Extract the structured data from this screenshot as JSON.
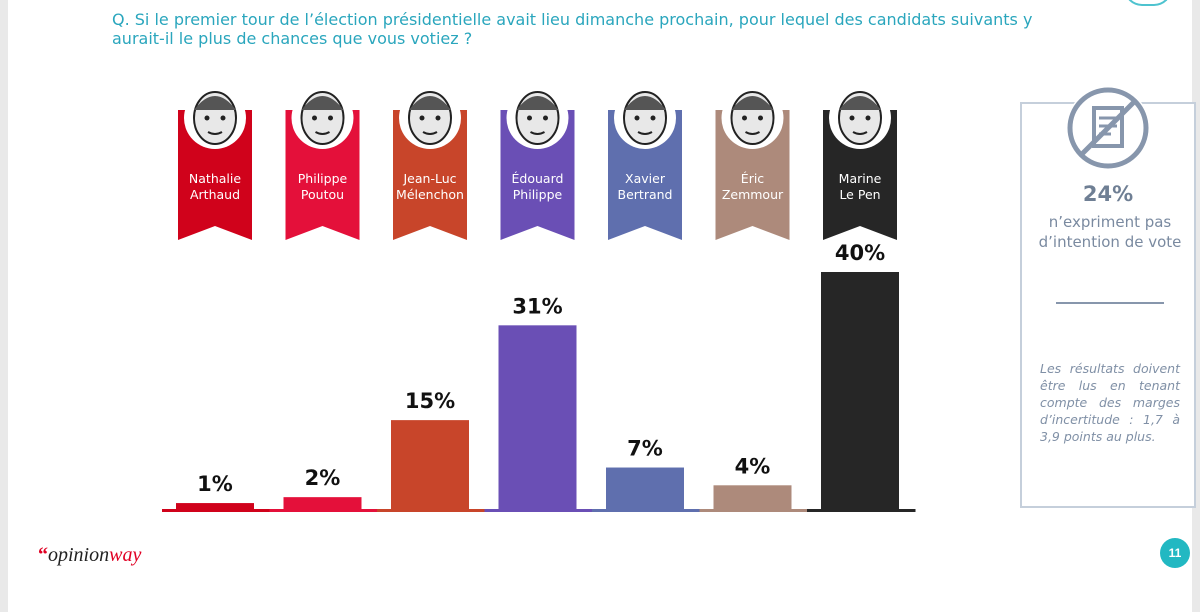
{
  "question": "Q. Si le premier tour de l’élection présidentielle avait lieu dimanche prochain, pour lequel des candidats suivants y aurait-il le plus de chances que vous votiez ?",
  "chart_data": {
    "type": "bar",
    "categories": [
      "Nathalie Arthaud",
      "Philippe Poutou",
      "Jean-Luc Mélenchon",
      "Édouard Philippe",
      "Xavier Bertrand",
      "Éric Zemmour",
      "Marine Le Pen"
    ],
    "category_lines": [
      [
        "Nathalie",
        "Arthaud"
      ],
      [
        "Philippe",
        "Poutou"
      ],
      [
        "Jean-Luc",
        "Mélenchon"
      ],
      [
        "Édouard",
        "Philippe"
      ],
      [
        "Xavier",
        "Bertrand"
      ],
      [
        "Éric",
        "Zemmour"
      ],
      [
        "Marine",
        "Le Pen"
      ]
    ],
    "values": [
      1,
      2,
      15,
      31,
      7,
      4,
      40
    ],
    "value_labels": [
      "1%",
      "2%",
      "15%",
      "31%",
      "7%",
      "4%",
      "40%"
    ],
    "colors": [
      "#d0021b",
      "#e4103a",
      "#c8452a",
      "#6a4fb5",
      "#5f6fae",
      "#ad8a7b",
      "#262626"
    ],
    "ylim": [
      0,
      40
    ],
    "title": "",
    "xlabel": "",
    "ylabel": "",
    "grid": false,
    "legend": "none"
  },
  "side_panel": {
    "icon": "crossed-out-ballot-icon",
    "pct": "24%",
    "text_lines": [
      "n’expriment pas",
      "d’intention de vote"
    ],
    "note": "Les résultats doivent être lus en tenant compte des marges d’incertitude : 1,7 à 3,9 points au plus."
  },
  "brand": {
    "quote": "“",
    "part1": "opinion",
    "part2": "way"
  },
  "page_number": "11"
}
